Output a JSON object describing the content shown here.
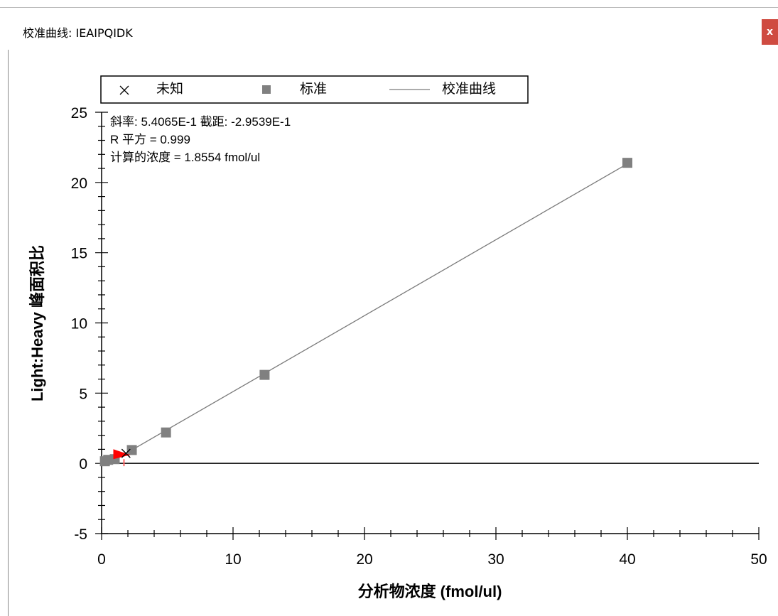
{
  "window": {
    "title": "校准曲线: IEAIPQIDK",
    "close_label": "x"
  },
  "chart_data": {
    "type": "scatter",
    "xlabel": "分析物浓度 (fmol/ul)",
    "ylabel": "Light:Heavy 峰面积比",
    "xlim": [
      0,
      50
    ],
    "ylim": [
      -5,
      25
    ],
    "x_ticks": [
      0,
      10,
      20,
      30,
      40,
      50
    ],
    "y_ticks": [
      -5,
      0,
      5,
      10,
      15,
      20,
      25
    ],
    "x_tick_labels": [
      "0",
      "10",
      "20",
      "30",
      "40",
      "50"
    ],
    "y_tick_labels": [
      "-5",
      "0",
      "5",
      "10",
      "15",
      "20",
      "25"
    ],
    "legend": {
      "placement": "top",
      "entries": [
        {
          "label": "未知",
          "marker": "x"
        },
        {
          "label": "标准",
          "marker": "square"
        },
        {
          "label": "校准曲线",
          "marker": "line"
        }
      ]
    },
    "annotations": [
      "斜率: 5.4065E-1 截距: -2.9539E-1",
      "R 平方 = 0.999",
      "计算的浓度 = 1.8554 fmol/ul"
    ],
    "series": [
      {
        "name": "标准",
        "marker": "square",
        "color": "#808080",
        "points": [
          {
            "x": 0.25,
            "y": 0.15
          },
          {
            "x": 0.5,
            "y": 0.25
          },
          {
            "x": 1.0,
            "y": 0.3
          },
          {
            "x": 2.3,
            "y": 0.95
          },
          {
            "x": 4.9,
            "y": 2.2
          },
          {
            "x": 12.4,
            "y": 6.3
          },
          {
            "x": 40.0,
            "y": 21.4
          }
        ]
      },
      {
        "name": "未知",
        "marker": "x",
        "color": "#000000",
        "points": [
          {
            "x": 1.8554,
            "y": 0.7077
          }
        ]
      },
      {
        "name": "校准曲线",
        "type": "line",
        "color": "#7a7a7a",
        "slope": 0.54065,
        "intercept": -0.29539,
        "x_range": [
          0.5,
          40
        ]
      }
    ],
    "highlight_marker": {
      "x": 1.0,
      "y": 0.6,
      "color": "#ff0000"
    },
    "grid": false,
    "zero_line": true
  }
}
